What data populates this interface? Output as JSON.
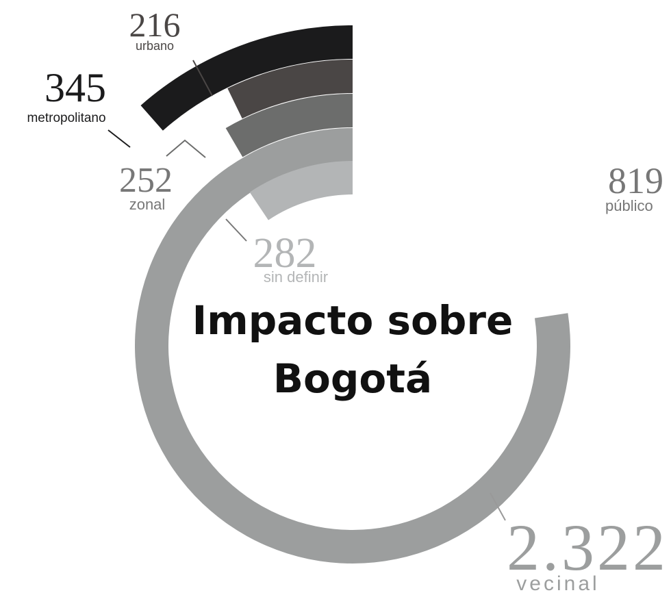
{
  "chart_data": {
    "type": "radial_bar",
    "title": [
      "Impacto sobre",
      "Bogotá"
    ],
    "categories": [
      "metropolitano",
      "urbano",
      "zonal",
      "vecinal",
      "sin definir"
    ],
    "values": [
      345,
      216,
      252,
      2322,
      282
    ],
    "value_labels": [
      "345",
      "216",
      "252",
      "2.322",
      "282"
    ],
    "colors": [
      "#1b1b1c",
      "#4a4645",
      "#6c6d6c",
      "#9c9e9e",
      "#b3b5b6"
    ],
    "other": {
      "name": "público",
      "value": 819,
      "color": "#777777"
    }
  }
}
